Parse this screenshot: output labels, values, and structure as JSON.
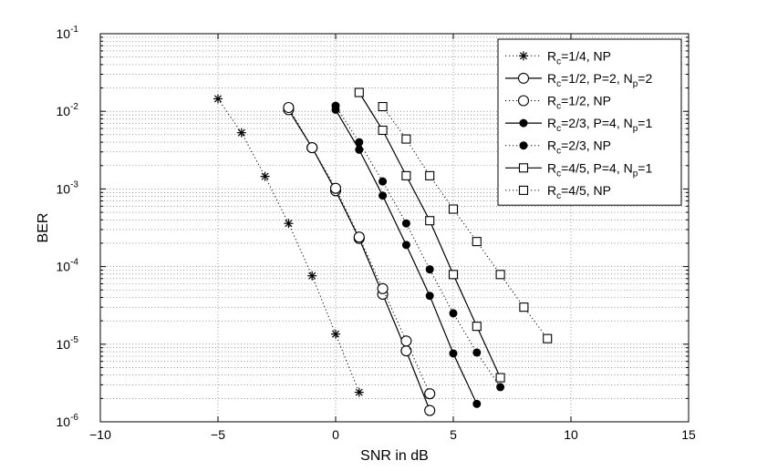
{
  "chart_data": {
    "type": "line",
    "xlabel": "SNR in dB",
    "ylabel": "BER",
    "xlim": [
      -10,
      15
    ],
    "ylim": [
      1e-06,
      0.1
    ],
    "yscale": "log",
    "grid": true,
    "legend_position": "top-right",
    "xticks": [
      {
        "v": -10,
        "label": "−10"
      },
      {
        "v": -5,
        "label": "−5"
      },
      {
        "v": 0,
        "label": "0"
      },
      {
        "v": 5,
        "label": "5"
      },
      {
        "v": 10,
        "label": "10"
      },
      {
        "v": 15,
        "label": "15"
      }
    ],
    "yticks": [
      {
        "v": 1e-06,
        "exp": "-6"
      },
      {
        "v": 1e-05,
        "exp": "-5"
      },
      {
        "v": 0.0001,
        "exp": "-4"
      },
      {
        "v": 0.001,
        "exp": "-3"
      },
      {
        "v": 0.01,
        "exp": "-2"
      },
      {
        "v": 0.1,
        "exp": "-1"
      }
    ],
    "series": [
      {
        "id": "rc14-np",
        "legend": [
          [
            "R",
            ""
          ],
          [
            "c",
            "sub"
          ],
          [
            "=1/4, NP",
            ""
          ]
        ],
        "marker": "star",
        "line": "dotted",
        "x": [
          -5,
          -4,
          -3,
          -2,
          -1,
          0,
          1
        ],
        "y": [
          0.0145,
          0.0053,
          0.00145,
          0.00036,
          7.6e-05,
          1.35e-05,
          2.4e-06
        ]
      },
      {
        "id": "rc12-p2",
        "legend": [
          [
            "R",
            ""
          ],
          [
            "c",
            "sub"
          ],
          [
            "=1/2, P=2, N",
            ""
          ],
          [
            "p",
            "sub"
          ],
          [
            "=2",
            ""
          ]
        ],
        "marker": "circle-open",
        "line": "solid",
        "x": [
          -2,
          -1,
          0,
          1,
          2,
          3,
          4
        ],
        "y": [
          0.0105,
          0.0034,
          0.00095,
          0.00023,
          4.4e-05,
          8.2e-06,
          1.4e-06
        ]
      },
      {
        "id": "rc12-np",
        "legend": [
          [
            "R",
            ""
          ],
          [
            "c",
            "sub"
          ],
          [
            "=1/2, NP",
            ""
          ]
        ],
        "marker": "circle-open",
        "line": "dotted",
        "x": [
          -2,
          -1,
          0,
          1,
          2,
          3,
          4
        ],
        "y": [
          0.0112,
          0.0034,
          0.00102,
          0.00024,
          5.2e-05,
          1.1e-05,
          2.3e-06
        ]
      },
      {
        "id": "rc23-p4",
        "legend": [
          [
            "R",
            ""
          ],
          [
            "c",
            "sub"
          ],
          [
            "=2/3, P=4, N",
            ""
          ],
          [
            "p",
            "sub"
          ],
          [
            "=1",
            ""
          ]
        ],
        "marker": "circle-filled",
        "line": "solid",
        "x": [
          0,
          1,
          2,
          3,
          4,
          5,
          6
        ],
        "y": [
          0.0105,
          0.0032,
          0.00082,
          0.00019,
          4.2e-05,
          7.6e-06,
          1.7e-06
        ]
      },
      {
        "id": "rc23-np",
        "legend": [
          [
            "R",
            ""
          ],
          [
            "c",
            "sub"
          ],
          [
            "=2/3, NP",
            ""
          ]
        ],
        "marker": "circle-filled",
        "line": "dotted",
        "x": [
          0,
          1,
          2,
          3,
          4,
          5,
          6,
          7
        ],
        "y": [
          0.0118,
          0.004,
          0.00125,
          0.00036,
          9.2e-05,
          2.5e-05,
          7.8e-06,
          2.8e-06
        ]
      },
      {
        "id": "rc45-p4",
        "legend": [
          [
            "R",
            ""
          ],
          [
            "c",
            "sub"
          ],
          [
            "=4/5, P=4, N",
            ""
          ],
          [
            "p",
            "sub"
          ],
          [
            "=1",
            ""
          ]
        ],
        "marker": "square",
        "line": "solid",
        "x": [
          1,
          2,
          3,
          4,
          5,
          6,
          7
        ],
        "y": [
          0.0175,
          0.0057,
          0.00148,
          0.00039,
          7.9e-05,
          1.7e-05,
          3.7e-06
        ]
      },
      {
        "id": "rc45-np",
        "legend": [
          [
            "R",
            ""
          ],
          [
            "c",
            "sub"
          ],
          [
            "=4/5, NP",
            ""
          ]
        ],
        "marker": "square",
        "line": "dotted",
        "x": [
          2,
          3,
          4,
          5,
          6,
          7,
          8,
          9
        ],
        "y": [
          0.0115,
          0.0044,
          0.00148,
          0.00055,
          0.00021,
          7.9e-05,
          3e-05,
          1.18e-05
        ]
      }
    ]
  }
}
